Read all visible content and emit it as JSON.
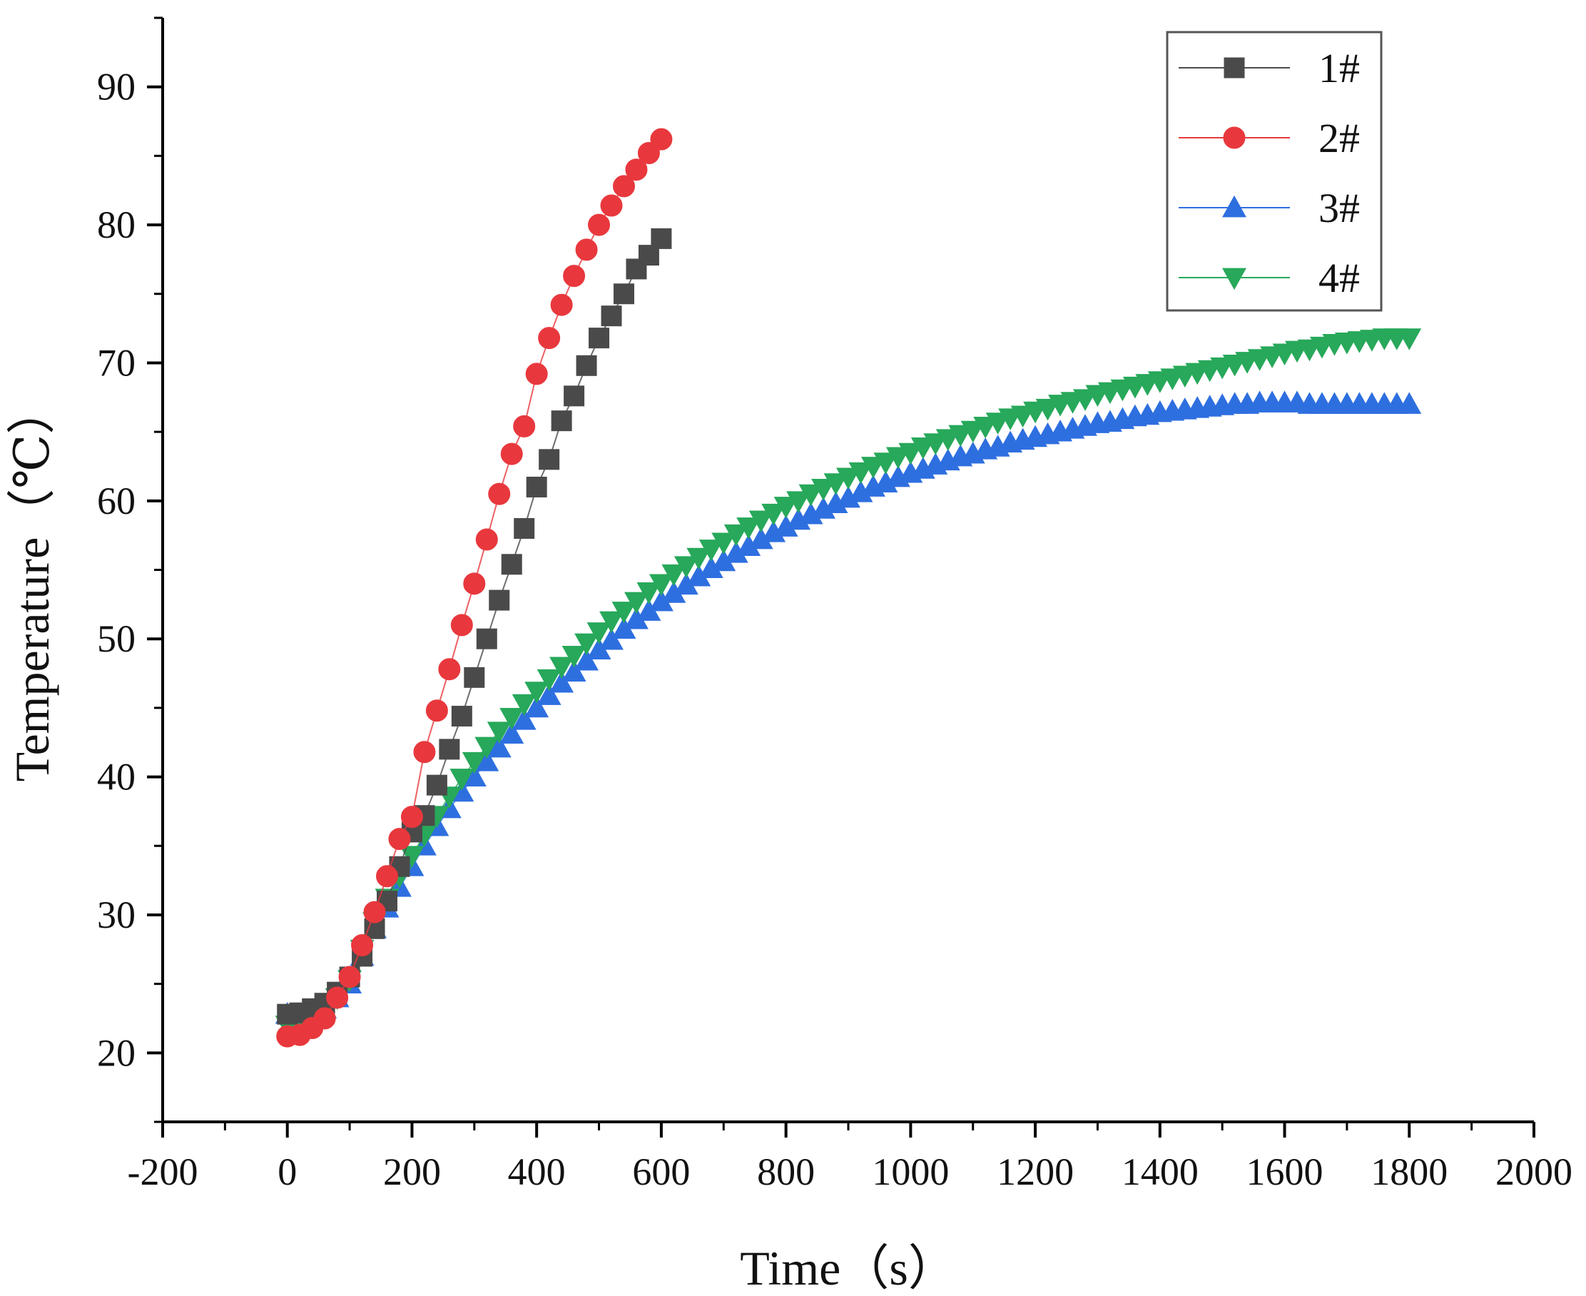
{
  "chart_data": {
    "type": "line",
    "xlabel": "Time（s）",
    "ylabel": "Temperature（℃）",
    "xlim": [
      -200,
      2000
    ],
    "ylim": [
      15,
      95
    ],
    "x_ticks": [
      -200,
      0,
      200,
      400,
      600,
      800,
      1000,
      1200,
      1400,
      1600,
      1800,
      2000
    ],
    "y_ticks": [
      20,
      30,
      40,
      50,
      60,
      70,
      80,
      90
    ],
    "legend_position": "top-right",
    "series": [
      {
        "name": "1#",
        "color": "#4a4a4a",
        "marker": "square",
        "x": [
          0,
          20,
          40,
          60,
          80,
          100,
          120,
          140,
          160,
          180,
          200,
          220,
          240,
          260,
          280,
          300,
          320,
          340,
          360,
          380,
          400,
          420,
          440,
          460,
          480,
          500,
          520,
          540,
          560,
          580,
          600
        ],
        "y": [
          22.8,
          22.9,
          23.2,
          23.6,
          24.4,
          25.5,
          27.0,
          29.0,
          31.0,
          33.5,
          36.0,
          37.2,
          39.4,
          42.0,
          44.4,
          47.2,
          50.0,
          52.8,
          55.4,
          58.0,
          61.0,
          63.0,
          65.8,
          67.6,
          69.8,
          71.8,
          73.4,
          75.0,
          76.8,
          77.8,
          79.0
        ]
      },
      {
        "name": "2#",
        "color": "#e8383d",
        "marker": "circle",
        "x": [
          0,
          20,
          40,
          60,
          80,
          100,
          120,
          140,
          160,
          180,
          200,
          220,
          240,
          260,
          280,
          300,
          320,
          340,
          360,
          380,
          400,
          420,
          440,
          460,
          480,
          500,
          520,
          540,
          560,
          580,
          600
        ],
        "y": [
          21.2,
          21.3,
          21.8,
          22.5,
          24.0,
          25.5,
          27.8,
          30.2,
          32.8,
          35.5,
          37.1,
          41.8,
          44.8,
          47.8,
          51.0,
          54.0,
          57.2,
          60.5,
          63.4,
          65.4,
          69.2,
          71.8,
          74.2,
          76.3,
          78.2,
          80.0,
          81.4,
          82.8,
          84.0,
          85.2,
          86.2
        ]
      },
      {
        "name": "3#",
        "color": "#2e6fe0",
        "marker": "triangle-up",
        "x_start": 0,
        "x_step": 20,
        "y": [
          22.8,
          22.8,
          23.0,
          23.2,
          24.0,
          25.0,
          27.0,
          29.0,
          30.5,
          32.0,
          33.5,
          35.0,
          36.4,
          37.7,
          38.9,
          40.0,
          41.1,
          42.1,
          43.1,
          44.1,
          45.0,
          45.9,
          46.8,
          47.6,
          48.4,
          49.2,
          49.9,
          50.7,
          51.4,
          52.0,
          52.7,
          53.3,
          53.9,
          54.5,
          55.1,
          55.6,
          56.2,
          56.7,
          57.2,
          57.7,
          58.1,
          58.6,
          59.0,
          59.4,
          59.8,
          60.2,
          60.6,
          61.0,
          61.3,
          61.7,
          62.0,
          62.3,
          62.6,
          62.9,
          63.2,
          63.4,
          63.7,
          63.9,
          64.2,
          64.4,
          64.6,
          64.8,
          65.0,
          65.2,
          65.4,
          65.6,
          65.7,
          65.9,
          66.1,
          66.2,
          66.4,
          66.5,
          66.6,
          66.7,
          66.8,
          66.9,
          67.0,
          67.0,
          67.1,
          67.1,
          67.1,
          67.1,
          67.0,
          67.0,
          67.0,
          67.0,
          67.0,
          67.0,
          67.0,
          67.0,
          67.0
        ]
      },
      {
        "name": "4#",
        "color": "#27a85a",
        "marker": "triangle-down",
        "x_start": 0,
        "x_step": 20,
        "y": [
          22.0,
          22.0,
          22.3,
          22.8,
          24.0,
          25.3,
          27.5,
          29.5,
          31.2,
          32.8,
          34.3,
          35.8,
          37.2,
          38.6,
          39.9,
          41.1,
          42.2,
          43.3,
          44.3,
          45.3,
          46.2,
          47.1,
          48.0,
          48.8,
          49.7,
          50.5,
          51.3,
          52.0,
          52.7,
          53.4,
          54.0,
          54.7,
          55.3,
          55.9,
          56.5,
          57.0,
          57.6,
          58.1,
          58.6,
          59.1,
          59.6,
          60.0,
          60.5,
          60.9,
          61.3,
          61.7,
          62.1,
          62.5,
          62.8,
          63.2,
          63.5,
          63.9,
          64.2,
          64.5,
          64.8,
          65.1,
          65.4,
          65.7,
          66.0,
          66.2,
          66.5,
          66.7,
          67.0,
          67.2,
          67.4,
          67.7,
          67.9,
          68.1,
          68.3,
          68.5,
          68.7,
          68.9,
          69.1,
          69.3,
          69.5,
          69.7,
          69.9,
          70.1,
          70.3,
          70.5,
          70.7,
          70.9,
          71.0,
          71.2,
          71.4,
          71.5,
          71.6,
          71.7,
          71.8,
          71.8,
          71.8
        ]
      }
    ]
  }
}
